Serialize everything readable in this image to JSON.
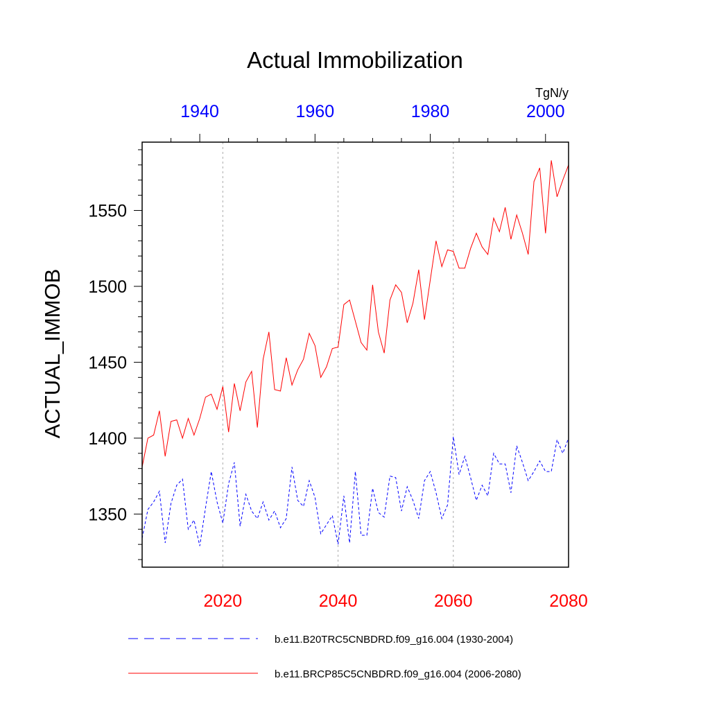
{
  "chart_data": {
    "type": "line",
    "title": "Actual Immobilization",
    "units": "TgN/y",
    "ylabel": "ACTUAL_IMMOB",
    "ylim": [
      1315,
      1595
    ],
    "yticks": [
      1350,
      1400,
      1450,
      1500,
      1550
    ],
    "yticks_text": [
      "1350",
      "1400",
      "1450",
      "1500",
      "1550"
    ],
    "top_axis": {
      "color": "#0000ff",
      "xlim": [
        1930,
        2004
      ],
      "ticks": [
        1940,
        1960,
        1980,
        2000
      ],
      "ticks_text": [
        "1940",
        "1960",
        "1980",
        "2000"
      ]
    },
    "bottom_axis": {
      "color": "#ff0000",
      "xlim": [
        2006,
        2080
      ],
      "ticks": [
        2020,
        2040,
        2060,
        2080
      ],
      "ticks_text": [
        "2020",
        "2040",
        "2060",
        "2080"
      ]
    },
    "grid": "vertical dotted at bottom-axis ticks",
    "series": [
      {
        "name": "b.e11.B20TRC5CNBDRD.f09_g16.004 (1930-2004)",
        "axis": "top",
        "color": "#0000ff",
        "dash": "dashed",
        "x_start": 1930,
        "values": [
          1334,
          1353,
          1358,
          1365,
          1331,
          1357,
          1369,
          1373,
          1340,
          1346,
          1329,
          1354,
          1378,
          1358,
          1344,
          1370,
          1384,
          1342,
          1363,
          1352,
          1347,
          1358,
          1346,
          1352,
          1341,
          1347,
          1381,
          1359,
          1355,
          1372,
          1361,
          1337,
          1343,
          1349,
          1330,
          1362,
          1331,
          1378,
          1336,
          1336,
          1367,
          1351,
          1348,
          1375,
          1374,
          1352,
          1368,
          1359,
          1347,
          1372,
          1378,
          1364,
          1347,
          1356,
          1401,
          1376,
          1388,
          1374,
          1359,
          1369,
          1362,
          1390,
          1383,
          1383,
          1364,
          1395,
          1384,
          1372,
          1378,
          1385,
          1378,
          1378,
          1399,
          1390,
          1400
        ]
      },
      {
        "name": "b.e11.BRCP85C5CNBDRD.f09_g16.004 (2006-2080)",
        "axis": "bottom",
        "color": "#ff0000",
        "dash": "solid",
        "x_start": 2006,
        "values": [
          1381,
          1400,
          1402,
          1418,
          1388,
          1411,
          1412,
          1400,
          1413,
          1402,
          1413,
          1427,
          1429,
          1419,
          1434,
          1404,
          1436,
          1418,
          1437,
          1444,
          1407,
          1452,
          1470,
          1432,
          1431,
          1453,
          1435,
          1445,
          1452,
          1469,
          1461,
          1440,
          1447,
          1459,
          1460,
          1488,
          1491,
          1477,
          1463,
          1458,
          1501,
          1470,
          1456,
          1491,
          1501,
          1496,
          1476,
          1489,
          1511,
          1478,
          1504,
          1530,
          1513,
          1524,
          1523,
          1512,
          1512,
          1525,
          1535,
          1526,
          1521,
          1545,
          1536,
          1552,
          1531,
          1547,
          1535,
          1521,
          1569,
          1578,
          1535,
          1583,
          1559,
          1570,
          1580
        ]
      }
    ],
    "legend": [
      {
        "label": "b.e11.B20TRC5CNBDRD.f09_g16.004 (1930-2004)",
        "color": "#0000ff",
        "dash": "dashed"
      },
      {
        "label": "b.e11.BRCP85C5CNBDRD.f09_g16.004 (2006-2080)",
        "color": "#ff0000",
        "dash": "solid"
      }
    ]
  }
}
